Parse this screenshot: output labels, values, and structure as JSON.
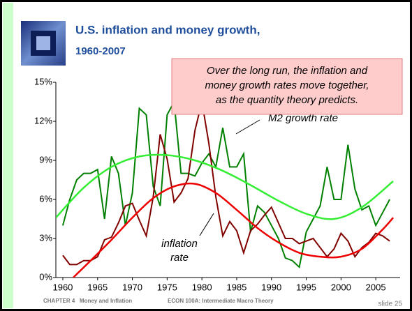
{
  "header": {
    "title_lines": [
      "U.S. inflation and money growth,",
      "1960-2007"
    ]
  },
  "chart_data": {
    "type": "line",
    "x": [
      1960,
      1961,
      1962,
      1963,
      1964,
      1965,
      1966,
      1967,
      1968,
      1969,
      1970,
      1971,
      1972,
      1973,
      1974,
      1975,
      1976,
      1977,
      1978,
      1979,
      1980,
      1981,
      1982,
      1983,
      1984,
      1985,
      1986,
      1987,
      1988,
      1989,
      1990,
      1991,
      1992,
      1993,
      1994,
      1995,
      1996,
      1997,
      1998,
      1999,
      2000,
      2001,
      2002,
      2003,
      2004,
      2005,
      2006,
      2007
    ],
    "xlim": [
      1959,
      2008.5
    ],
    "xticks": [
      1960,
      1965,
      1970,
      1975,
      1980,
      1985,
      1990,
      1995,
      2000,
      2005
    ],
    "ylim": [
      0,
      15
    ],
    "yticks": [
      {
        "value": 0,
        "label": "0%"
      },
      {
        "value": 3,
        "label": "3%"
      },
      {
        "value": 6,
        "label": "6%"
      },
      {
        "value": 9,
        "label": "9%"
      },
      {
        "value": 12,
        "label": "12%"
      },
      {
        "value": 15,
        "label": "15%"
      }
    ],
    "series": [
      {
        "color": "#008000",
        "values": [
          4.0,
          6.0,
          7.5,
          8.0,
          8.0,
          8.3,
          4.5,
          9.3,
          8.0,
          4.0,
          6.5,
          13.0,
          12.5,
          7.0,
          5.5,
          12.5,
          13.5,
          8.0,
          8.0,
          7.8,
          8.8,
          9.5,
          8.5,
          11.5,
          8.5,
          8.5,
          9.5,
          3.5,
          5.5,
          5.0,
          4.0,
          3.0,
          1.5,
          1.3,
          0.8,
          3.5,
          4.5,
          5.5,
          8.5,
          6.0,
          6.0,
          10.2,
          6.8,
          5.2,
          5.5,
          4.0,
          5.0,
          6.0
        ]
      },
      {
        "color": "#800000",
        "values": [
          1.7,
          1.0,
          1.0,
          1.3,
          1.3,
          1.6,
          2.9,
          3.1,
          4.2,
          5.5,
          5.7,
          4.4,
          3.2,
          6.2,
          11.0,
          9.1,
          5.8,
          6.5,
          7.6,
          11.3,
          13.5,
          10.3,
          6.2,
          3.2,
          4.3,
          3.6,
          1.9,
          3.6,
          4.1,
          4.8,
          5.4,
          4.2,
          3.0,
          3.0,
          2.6,
          2.8,
          3.0,
          2.3,
          1.6,
          2.2,
          3.4,
          2.8,
          1.6,
          2.3,
          2.7,
          3.4,
          3.2,
          2.8
        ]
      },
      {
        "color": "#33ee33",
        "x": [
          1959,
          1963,
          1967,
          1971,
          1975,
          1979,
          1983,
          1987,
          1991,
          1995,
          1999,
          2003,
          2007.5
        ],
        "values": [
          4.6,
          6.9,
          8.5,
          9.3,
          9.4,
          9.0,
          8.2,
          7.1,
          5.9,
          4.9,
          4.5,
          5.4,
          7.4
        ]
      },
      {
        "color": "#ee0000",
        "x": [
          1961.5,
          1964,
          1967,
          1970,
          1973,
          1976,
          1979,
          1982,
          1985,
          1988,
          1991,
          1994,
          1997,
          2000,
          2003,
          2006,
          2007.5
        ],
        "values": [
          0.0,
          1.3,
          2.9,
          4.6,
          6.1,
          7.0,
          7.2,
          6.5,
          5.2,
          3.8,
          2.7,
          1.9,
          1.6,
          1.6,
          2.2,
          3.7,
          4.6
        ]
      }
    ],
    "annotations": [
      {
        "text": "M2 growth rate"
      },
      {
        "lines": [
          "inflation",
          "rate"
        ]
      }
    ],
    "callout": [
      "Over the long run, the inflation and",
      "money growth rates move together,",
      "as the quantity theory predicts."
    ]
  },
  "footer": {
    "left": "CHAPTER 4   Money and Inflation",
    "center": "ECON 100A: Intermediate Macro Theory",
    "slide": "slide 25"
  }
}
